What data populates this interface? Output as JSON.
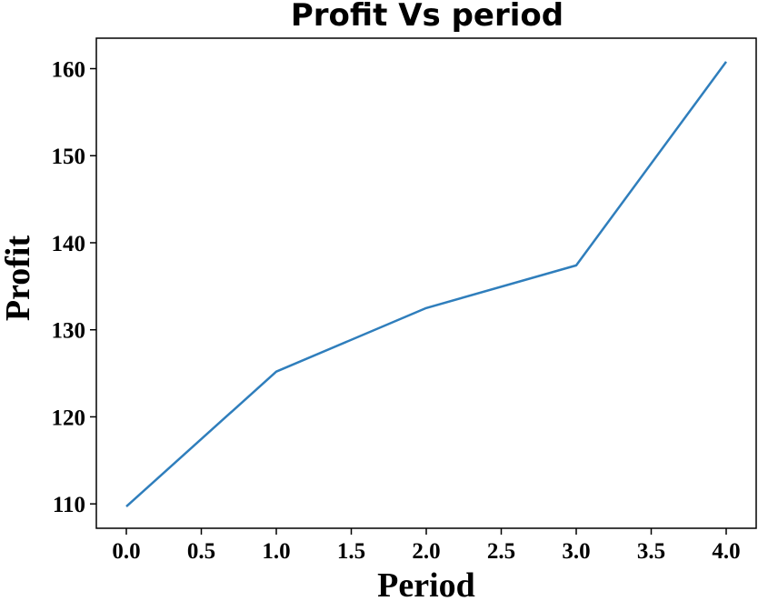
{
  "chart_data": {
    "type": "line",
    "title": "Profit Vs period",
    "xlabel": "Period",
    "ylabel": "Profit",
    "x": [
      0,
      1,
      2,
      3,
      4
    ],
    "series": [
      {
        "values": [
          109.7,
          125.2,
          132.5,
          137.4,
          160.8
        ],
        "color": "#2f7ebc"
      }
    ],
    "xlim": [
      -0.2,
      4.2
    ],
    "ylim": [
      107.2,
      163.5
    ],
    "xticks": [
      0.0,
      0.5,
      1.0,
      1.5,
      2.0,
      2.5,
      3.0,
      3.5,
      4.0
    ],
    "xtick_labels": [
      "0.0",
      "0.5",
      "1.0",
      "1.5",
      "2.0",
      "2.5",
      "3.0",
      "3.5",
      "4.0"
    ],
    "yticks": [
      110,
      120,
      130,
      140,
      150,
      160
    ],
    "ytick_labels": [
      "110",
      "120",
      "130",
      "140",
      "150",
      "160"
    ],
    "grid": false,
    "legend": "none"
  }
}
